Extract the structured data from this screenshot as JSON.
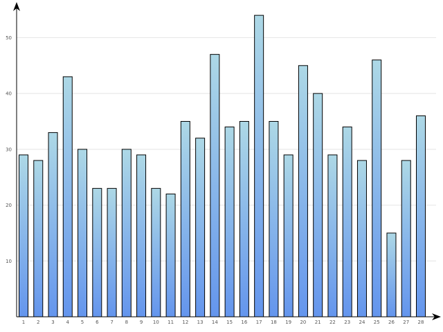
{
  "chart_data": {
    "type": "bar",
    "title": "",
    "xlabel": "",
    "ylabel": "",
    "categories": [
      "1",
      "2",
      "3",
      "4",
      "5",
      "6",
      "7",
      "8",
      "9",
      "10",
      "11",
      "12",
      "13",
      "14",
      "15",
      "16",
      "17",
      "18",
      "19",
      "20",
      "21",
      "22",
      "23",
      "24",
      "25",
      "26",
      "27",
      "28"
    ],
    "values": [
      29,
      28,
      33,
      43,
      30,
      23,
      23,
      30,
      29,
      23,
      22,
      35,
      32,
      47,
      34,
      35,
      54,
      35,
      29,
      45,
      40,
      29,
      34,
      28,
      46,
      15,
      28,
      36
    ],
    "ylim": [
      0,
      56
    ],
    "yticks": [
      10,
      20,
      30,
      40,
      50
    ],
    "grid": true,
    "colors": {
      "bar_top": "#add8e6",
      "bar_bottom": "#6495ed",
      "grid": "#e4e4e4",
      "axis": "#000000"
    }
  }
}
